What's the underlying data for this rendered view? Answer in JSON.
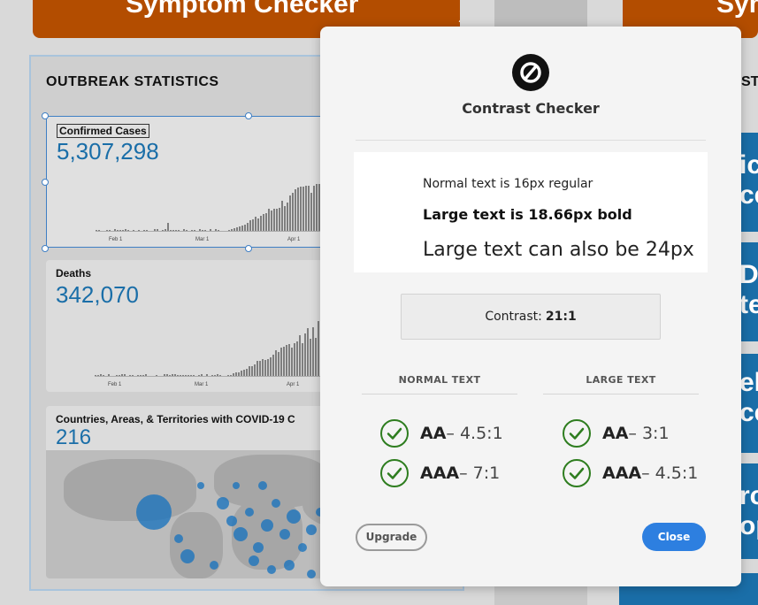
{
  "background": {
    "top_left_button": "Symptom Checker",
    "top_right_button": "Sym",
    "stats_title": "OUTBREAK STATISTICS",
    "cards": [
      {
        "label": "Confirmed Cases",
        "value": "5,307,298",
        "ticks": [
          "Feb 1",
          "Mar 1",
          "Apr 1"
        ]
      },
      {
        "label": "Deaths",
        "value": "342,070",
        "ticks": [
          "Feb 1",
          "Mar 1",
          "Apr 1"
        ]
      },
      {
        "label": "Countries, Areas, & Territories with COVID-19 C",
        "value": "216"
      }
    ],
    "right_column": {
      "heading": "STA",
      "tiles": [
        {
          "lines": [
            "ic",
            "ce"
          ]
        },
        {
          "lines": [
            "D.",
            "te"
          ]
        },
        {
          "lines": [
            "el",
            "ce"
          ]
        },
        {
          "lines": [
            "rc",
            "op"
          ]
        }
      ]
    }
  },
  "modal": {
    "title": "Contrast Checker",
    "logo_icon": "contrast-checker-logo-icon",
    "samples": {
      "normal": "Normal text is 16px regular",
      "large_bold": "Large text is 18.66px bold",
      "large": "Large text can also be 24px"
    },
    "contrast_label": "Contrast:",
    "contrast_value": "21:1",
    "columns": {
      "normal_text": {
        "header": "NORMAL TEXT",
        "results": [
          {
            "level": "AA",
            "threshold": "– 4.5:1",
            "status": "pass"
          },
          {
            "level": "AAA",
            "threshold": "– 7:1",
            "status": "pass"
          }
        ]
      },
      "large_text": {
        "header": "LARGE TEXT",
        "results": [
          {
            "level": "AA",
            "threshold": "– 3:1",
            "status": "pass"
          },
          {
            "level": "AAA",
            "threshold": "– 4.5:1",
            "status": "pass"
          }
        ]
      }
    },
    "buttons": {
      "upgrade": "Upgrade",
      "close": "Close"
    },
    "colors": {
      "pass": "#2e7d1f",
      "primary": "#2d7fe0",
      "brand_orange": "#b34d00",
      "stat_blue": "#1a6ea8"
    }
  }
}
